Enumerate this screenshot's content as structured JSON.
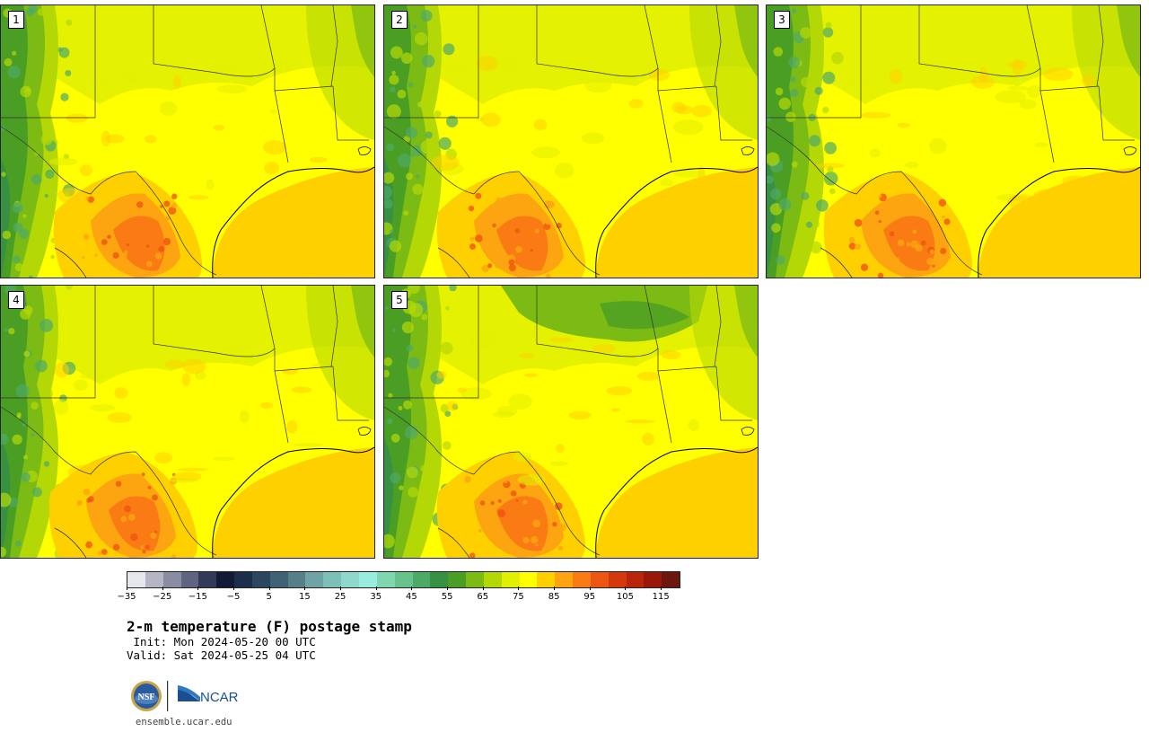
{
  "panels": [
    {
      "label": "1",
      "variant": 0
    },
    {
      "label": "2",
      "variant": 1
    },
    {
      "label": "3",
      "variant": 2
    },
    {
      "label": "4",
      "variant": 3
    },
    {
      "label": "5",
      "variant": 4
    }
  ],
  "colorbar": {
    "colors": [
      "#e6e7ec",
      "#b4b6c4",
      "#8a8da2",
      "#5f6480",
      "#34395a",
      "#121a35",
      "#1c2e4c",
      "#2c4660",
      "#3f6275",
      "#568089",
      "#6fa3a5",
      "#7dbfb9",
      "#8fd9cc",
      "#99edde",
      "#7fd6af",
      "#68c28c",
      "#4daa66",
      "#389042",
      "#4a9e24",
      "#7cbb14",
      "#b4d805",
      "#e1ef00",
      "#ffff00",
      "#ffd000",
      "#fca510",
      "#fa7b14",
      "#ef5512",
      "#d4380c",
      "#b82508",
      "#9a180a",
      "#6b160e"
    ],
    "tick_labels": [
      "−35",
      "−25",
      "−15",
      "−5",
      "5",
      "15",
      "25",
      "35",
      "45",
      "55",
      "65",
      "75",
      "85",
      "95",
      "105",
      "115"
    ]
  },
  "title": "2-m temperature (F) postage stamp",
  "init_line": " Init: Mon 2024-05-20 00 UTC",
  "valid_line": "Valid: Sat 2024-05-25 04 UTC",
  "logo": {
    "nsf_text": "NSF",
    "ncar_text": "NCAR"
  },
  "site": "ensemble.ucar.edu"
}
